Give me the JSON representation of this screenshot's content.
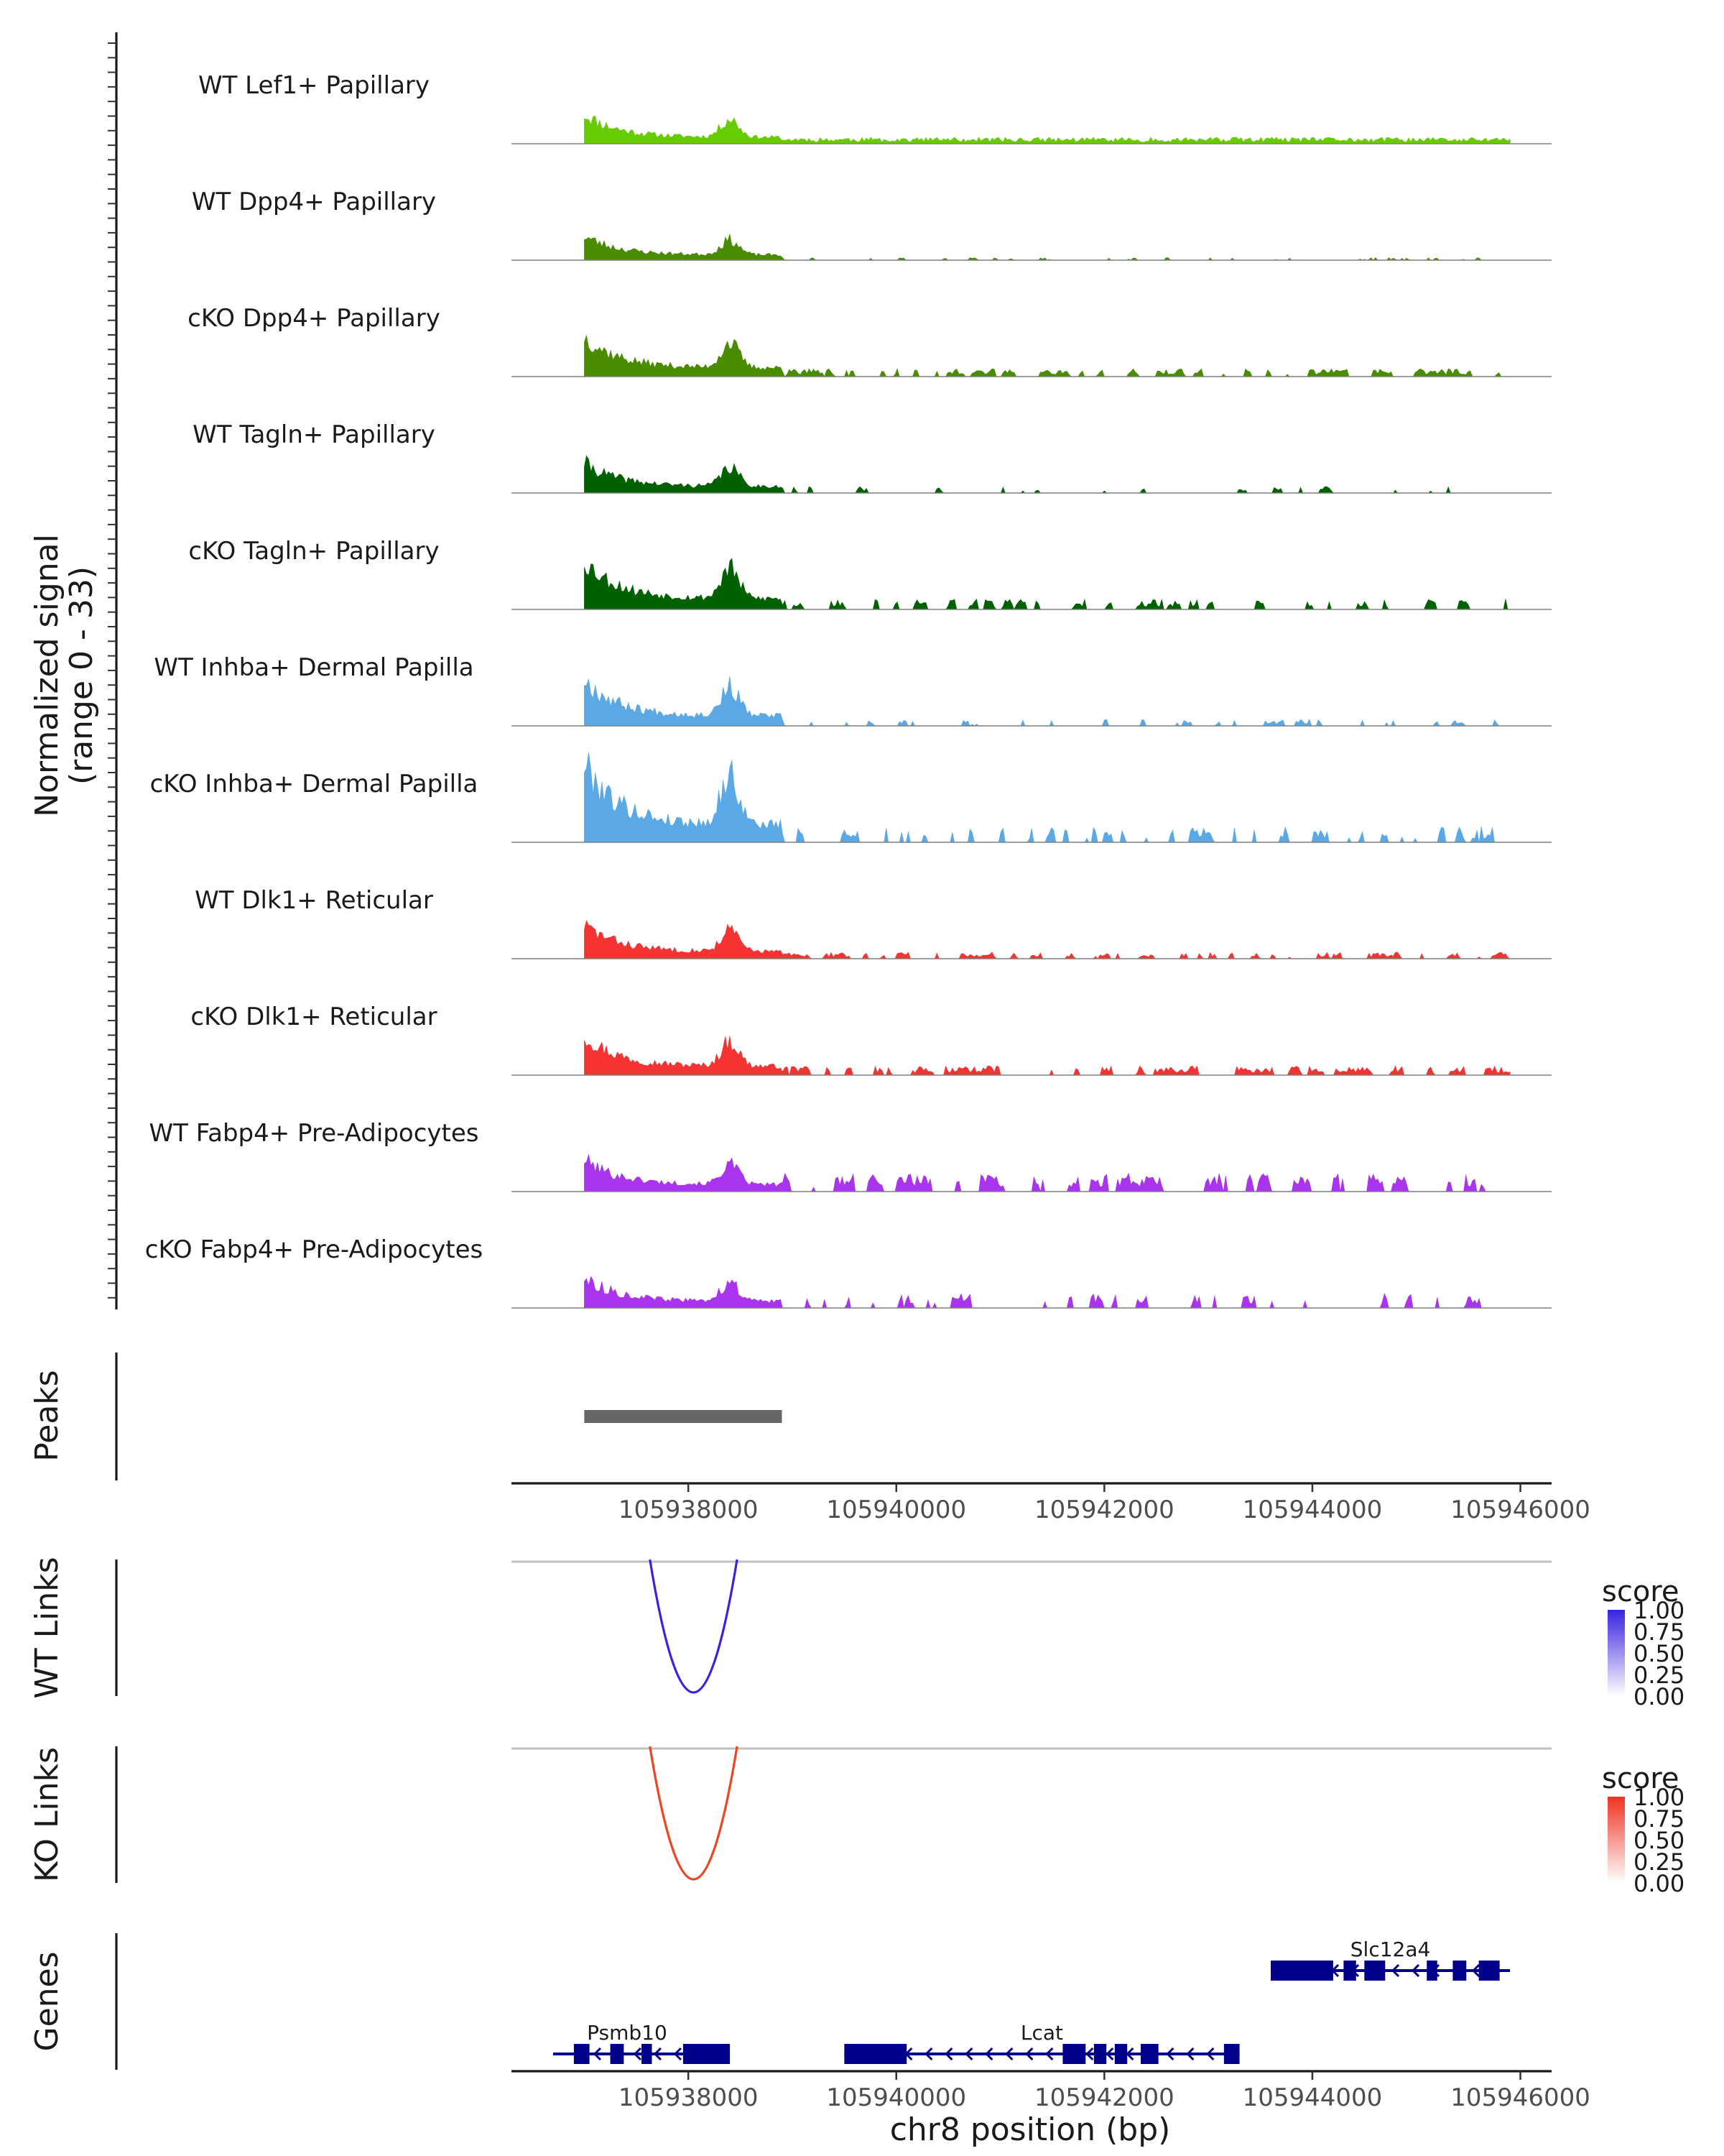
{
  "chart_data": {
    "type": "area",
    "title": "",
    "genomic_range": [
      105936300,
      105946300
    ],
    "coverage": {
      "ylabel_line1": "Normalized signal",
      "ylabel_line2": "(range 0 - 33)",
      "ylim": [
        0,
        33
      ],
      "tracks": [
        {
          "name": "WT Lef1+ Papillary",
          "color": "#66cc00",
          "seed": 11,
          "peak": 0.33,
          "tail": 0.05,
          "gapiness": 0.0
        },
        {
          "name": "WT Dpp4+ Papillary",
          "color": "#4a8c00",
          "seed": 23,
          "peak": 0.27,
          "tail": 0.02,
          "gapiness": 0.9
        },
        {
          "name": "cKO Dpp4+ Papillary",
          "color": "#4a8c00",
          "seed": 37,
          "peak": 0.45,
          "tail": 0.06,
          "gapiness": 0.3
        },
        {
          "name": "WT Tagln+ Papillary",
          "color": "#006100",
          "seed": 41,
          "peak": 0.34,
          "tail": 0.05,
          "gapiness": 0.85
        },
        {
          "name": "cKO Tagln+ Papillary",
          "color": "#006100",
          "seed": 53,
          "peak": 0.55,
          "tail": 0.08,
          "gapiness": 0.45
        },
        {
          "name": "WT Inhba+ Dermal Papilla",
          "color": "#5aa9e6",
          "seed": 67,
          "peak": 0.52,
          "tail": 0.05,
          "gapiness": 0.8
        },
        {
          "name": "cKO Inhba+ Dermal Papilla",
          "color": "#5aa9e6",
          "seed": 79,
          "peak": 0.9,
          "tail": 0.12,
          "gapiness": 0.6
        },
        {
          "name": "WT Dlk1+ Reticular",
          "color": "#f53333",
          "seed": 83,
          "peak": 0.38,
          "tail": 0.05,
          "gapiness": 0.4
        },
        {
          "name": "cKO Dlk1+ Reticular",
          "color": "#f53333",
          "seed": 97,
          "peak": 0.45,
          "tail": 0.07,
          "gapiness": 0.35
        },
        {
          "name": "WT Fabp4+ Pre-Adipocytes",
          "color": "#aa33ee",
          "seed": 101,
          "peak": 0.36,
          "tail": 0.14,
          "gapiness": 0.35
        },
        {
          "name": "cKO Fabp4+ Pre-Adipocytes",
          "color": "#aa33ee",
          "seed": 113,
          "peak": 0.34,
          "tail": 0.11,
          "gapiness": 0.6
        }
      ]
    },
    "peaks": {
      "label": "Peaks",
      "regions": [
        [
          105937000,
          105938900
        ]
      ],
      "color": "#666666"
    },
    "x_axis": {
      "ticks": [
        105938000,
        105940000,
        105942000,
        105944000,
        105946000
      ],
      "tick_labels": [
        "105938000",
        "105940000",
        "105942000",
        "105944000",
        "105946000"
      ],
      "xlabel": "chr8 position (bp)"
    },
    "links": [
      {
        "label": "WT Links",
        "start": 105937700,
        "end": 105938400,
        "score": 1.0,
        "color": "#3a22e0",
        "legend_title": "score",
        "legend_ticks": [
          "1.00",
          "0.75",
          "0.50",
          "0.25",
          "0.00"
        ],
        "legend_high": "#3a22e0",
        "legend_low": "#ffffff"
      },
      {
        "label": "KO Links",
        "start": 105937700,
        "end": 105938400,
        "score": 1.0,
        "color": "#ee4422",
        "legend_title": "score",
        "legend_ticks": [
          "1.00",
          "0.75",
          "0.50",
          "0.25",
          "0.00"
        ],
        "legend_high": "#ee3322",
        "legend_low": "#ffffff"
      }
    ],
    "genes": {
      "label": "Genes",
      "color": "#00008b",
      "items": [
        {
          "name": "Slc12a4",
          "start": 105943600,
          "end": 105945900,
          "row": 0,
          "strand": "-",
          "exons": [
            [
              105943600,
              105944200
            ],
            [
              105944300,
              105944420
            ],
            [
              105944500,
              105944700
            ],
            [
              105945100,
              105945200
            ],
            [
              105945350,
              105945480
            ],
            [
              105945600,
              105945800
            ]
          ]
        },
        {
          "name": "Psmb10",
          "start": 105936700,
          "end": 105938400,
          "row": 1,
          "strand": "-",
          "exons": [
            [
              105936900,
              105937050
            ],
            [
              105937250,
              105937380
            ],
            [
              105937550,
              105937650
            ],
            [
              105937950,
              105938400
            ]
          ]
        },
        {
          "name": "Lcat",
          "start": 105939500,
          "end": 105943300,
          "row": 1,
          "strand": "-",
          "exons": [
            [
              105939500,
              105940100
            ],
            [
              105941600,
              105941820
            ],
            [
              105941900,
              105942020
            ],
            [
              105942100,
              105942220
            ],
            [
              105942350,
              105942520
            ],
            [
              105943150,
              105943300
            ]
          ]
        }
      ]
    }
  }
}
